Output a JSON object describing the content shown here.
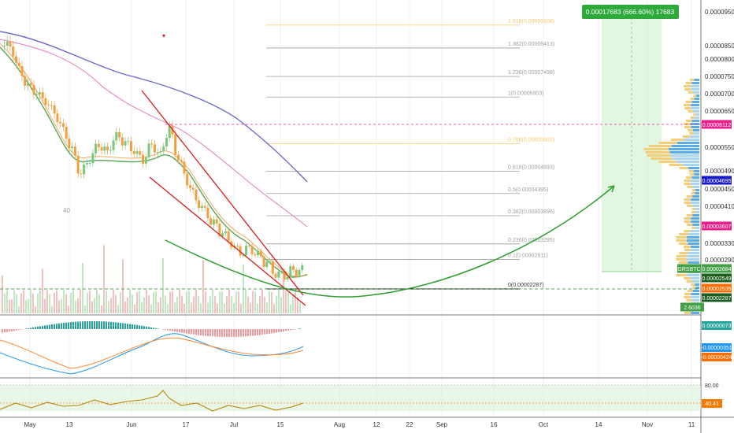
{
  "colors": {
    "up": "#26a69a",
    "down": "#ef5350",
    "ema_fast": "#5aa55a",
    "ema_slow_pink": "#e88cc8",
    "ma_purple": "#6a6acd",
    "fib_gray": "#9e9e9e",
    "fib_gold": "#f5c96c",
    "green_arrow": "#2e9e2e",
    "channel_red": "#d81b1b",
    "macd_blue": "#2196f3",
    "macd_orange": "#ff8a34",
    "rsi_line": "#b8860b"
  },
  "chart_data": [
    {
      "type": "line",
      "name": "main-price-pane",
      "symbol": "GRSBTC",
      "x_labels": [
        "May",
        "13",
        "Jun",
        "17",
        "Jul",
        "15",
        "Aug",
        "12",
        "22",
        "Sep",
        "16",
        "Oct",
        "14",
        "Nov",
        "11"
      ],
      "y_tick_labels": [
        "0.00009500",
        "0.00008500",
        "0.00008000",
        "0.00007500",
        "0.00007000",
        "0.00006500",
        "0.00005500",
        "0.00004900",
        "0.00004500",
        "0.00004100",
        "0.00003300",
        "0.00002900"
      ],
      "price_badges": [
        {
          "label": "0.00006112",
          "color": "#e91e8c"
        },
        {
          "label": "0.00004695",
          "color": "#1a1acd"
        },
        {
          "label": "0.00003607",
          "color": "#e91e8c"
        },
        {
          "label": "GRSBTC",
          "color": "#43a047"
        },
        {
          "label": "0.00002684",
          "color": "#43a047"
        },
        {
          "label": "0.00002549",
          "color": "#1b5e20"
        },
        {
          "label": "0.00002535",
          "color": "#ff6d00"
        },
        {
          "label": "0.00002287",
          "color": "#1b5e20"
        },
        {
          "label": "2.6036",
          "color": "#43a047"
        }
      ],
      "fib_levels": [
        {
          "label": "1.618(0.00009108)",
          "value": 9.108e-05,
          "color": "#f5c96c"
        },
        {
          "label": "1.382(0.00008413)",
          "value": 8.413e-05,
          "color": "#9e9e9e"
        },
        {
          "label": "1.236(0.00007498)",
          "value": 7.498e-05,
          "color": "#9e9e9e"
        },
        {
          "label": "1(0.00006903)",
          "value": 6.903e-05,
          "color": "#9e9e9e"
        },
        {
          "label": "0.786(0.00005601)",
          "value": 5.601e-05,
          "color": "#f5c96c"
        },
        {
          "label": "0.618(0.00004893)",
          "value": 4.893e-05,
          "color": "#9e9e9e"
        },
        {
          "label": "0.5(0.00004395)",
          "value": 4.395e-05,
          "color": "#9e9e9e"
        },
        {
          "label": "0.382(0.00003896)",
          "value": 3.896e-05,
          "color": "#9e9e9e"
        },
        {
          "label": "0.236(0.00003285)",
          "value": 3.285e-05,
          "color": "#9e9e9e"
        },
        {
          "label": "0.1(0.00002911)",
          "value": 2.911e-05,
          "color": "#9e9e9e"
        },
        {
          "label": "0(0.00002287)",
          "value": 2.287e-05,
          "color": "#111111"
        }
      ],
      "target_box_label": "0.00017683 (666.60%) 17683",
      "candle_annotation": "40",
      "price_series": [
        8.5e-05,
        7.7e-05,
        7.2e-05,
        7e-05,
        6.8e-05,
        6.5e-05,
        6e-05,
        5.4e-05,
        4.8e-05,
        5.2e-05,
        5.6e-05,
        5.4e-05,
        5.8e-05,
        5.6e-05,
        5.4e-05,
        5.2e-05,
        5.6e-05,
        5.3e-05,
        6e-05,
        5.2e-05,
        4.7e-05,
        4.3e-05,
        4e-05,
        3.7e-05,
        3.5e-05,
        3.3e-05,
        3.1e-05,
        3.2e-05,
        3e-05,
        2.8e-05,
        2.6e-05,
        2.6e-05,
        2.7e-05,
        2.68e-05
      ]
    },
    {
      "type": "bar",
      "name": "macd-pane",
      "labels": [
        "0.00000073",
        "-0.00000351",
        "-0.00000424"
      ]
    },
    {
      "type": "line",
      "name": "rsi-pane",
      "labels": [
        "80.00",
        "40.41"
      ]
    }
  ]
}
